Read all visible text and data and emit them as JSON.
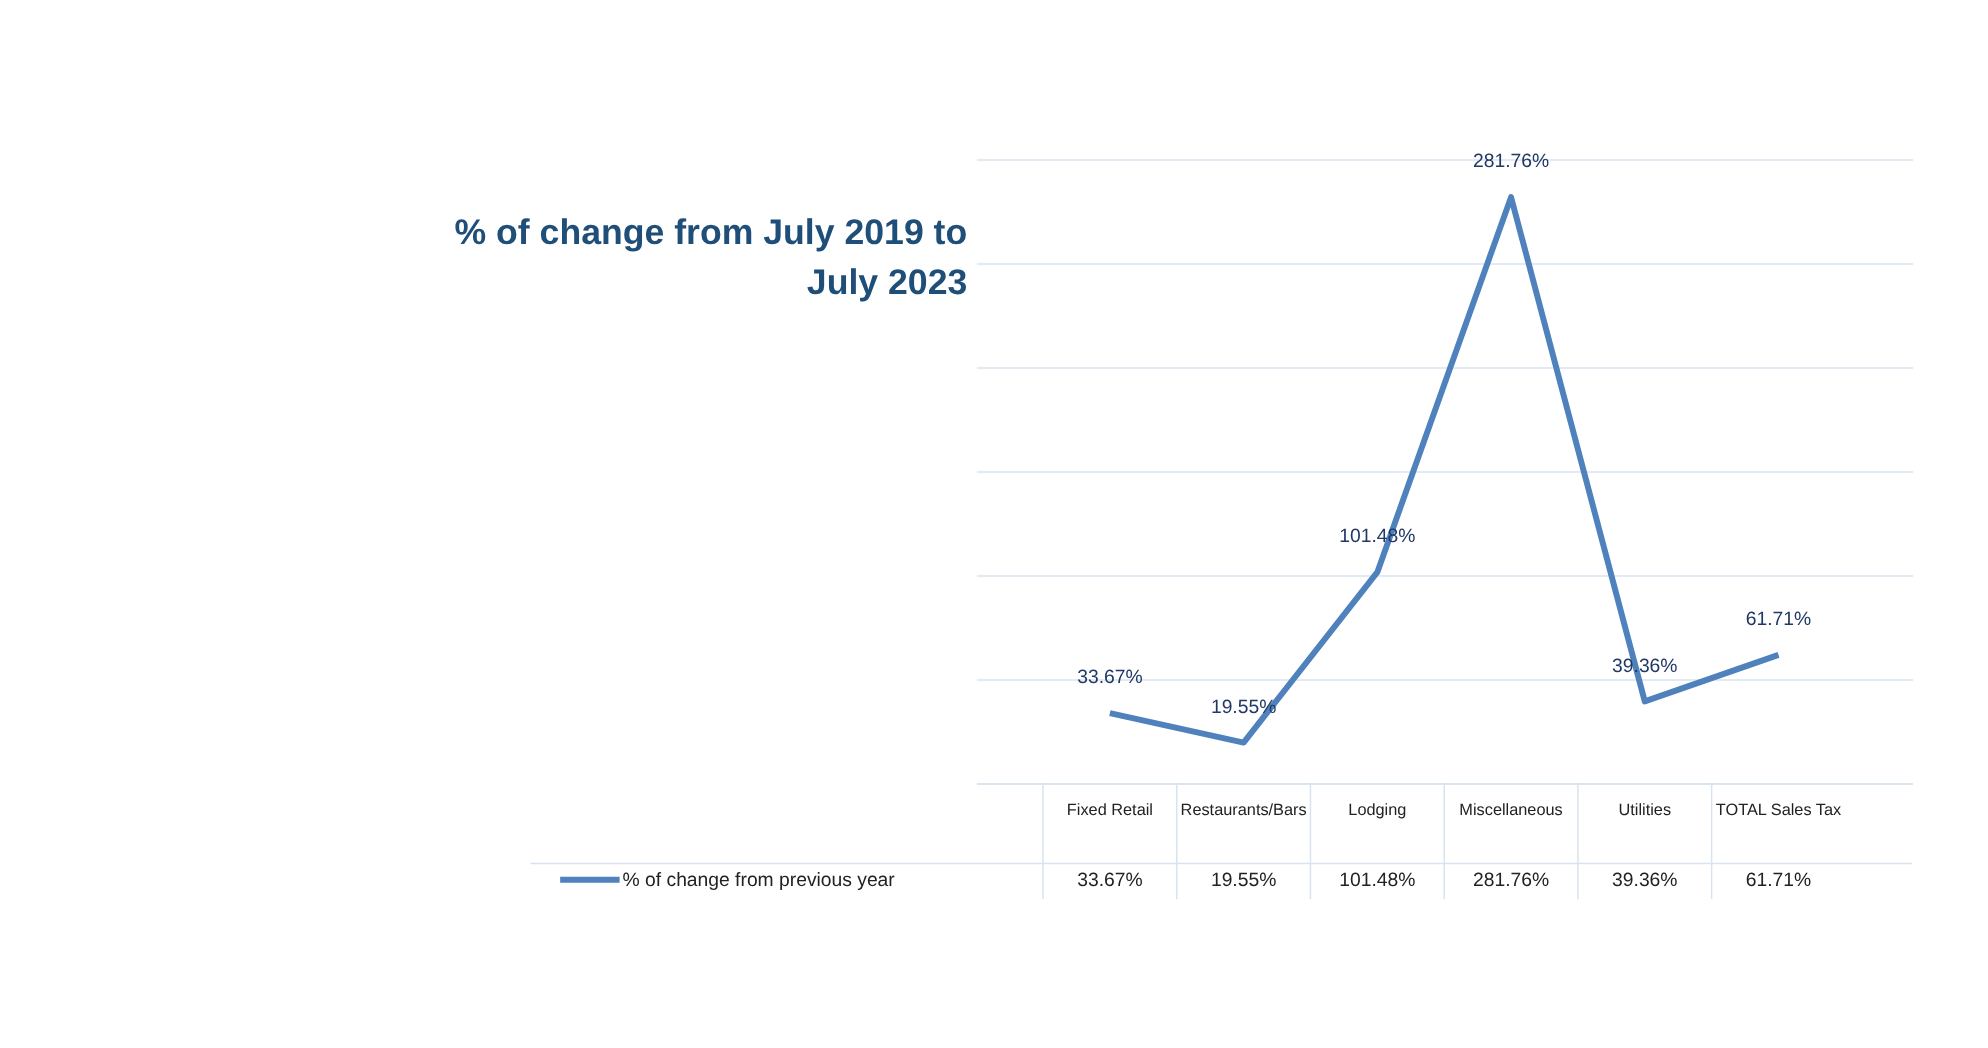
{
  "chart_data": {
    "type": "line",
    "title": "% of change from July 2019 to July 2023",
    "categories": [
      "Fixed Retail",
      "Restaurants/Bars",
      "Lodging",
      "Miscellaneous",
      "Utilities",
      "TOTAL Sales Tax"
    ],
    "series": [
      {
        "name": "% of change from previous year",
        "color": "#4f81bd",
        "values": [
          33.67,
          19.55,
          101.48,
          281.76,
          39.36,
          61.71
        ],
        "value_labels": [
          "33.67%",
          "19.55%",
          "101.48%",
          "281.76%",
          "39.36%",
          "61.71%"
        ]
      }
    ],
    "ylim": [
      0,
      300
    ],
    "yticks": [
      {
        "value": 0,
        "label": null
      },
      {
        "value": 50,
        "label": null
      },
      {
        "value": 100,
        "label": null
      },
      {
        "value": 150,
        "label": null
      },
      {
        "value": 200,
        "label": null
      },
      {
        "value": 250,
        "label": null
      },
      {
        "value": 300,
        "label": null
      }
    ],
    "tick_labels": "x",
    "grid": "y",
    "legend": "bottom left",
    "marker": "none",
    "line_style": "solid"
  }
}
